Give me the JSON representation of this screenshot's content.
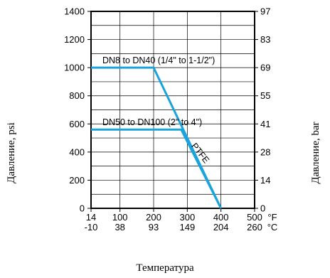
{
  "chart_data": {
    "type": "line",
    "xlabel": "Температура",
    "ylabel_left": "Давление, psi",
    "ylabel_right": "Давление, bar",
    "xlim": [
      14,
      500
    ],
    "ylim": [
      0,
      1400
    ],
    "grid": true,
    "x_ticks_f": [
      14,
      100,
      200,
      300,
      400,
      500
    ],
    "x_ticks_c": [
      -10,
      38,
      93,
      149,
      204,
      260
    ],
    "x_unit_f": "°F",
    "x_unit_c": "°C",
    "y_ticks_psi": [
      0,
      200,
      400,
      600,
      800,
      1000,
      1200,
      1400
    ],
    "y_ticks_bar": [
      0,
      14,
      28,
      41,
      55,
      69,
      83,
      97
    ],
    "y_grid": [
      100,
      300,
      500,
      700,
      900,
      1100,
      1300
    ],
    "x_grid": [
      100,
      200,
      300,
      400
    ],
    "series": [
      {
        "name": "DN8 to DN40 (1/4\" to 1-1/2\")",
        "x": [
          14,
          200,
          400
        ],
        "y": [
          1000,
          1000,
          0
        ]
      },
      {
        "name": "DN50 to DN100 (2\"  to 4\")",
        "x": [
          14,
          282,
          400
        ],
        "y": [
          560,
          560,
          0
        ]
      }
    ],
    "annotations": [
      {
        "text": "PTFE",
        "x": 332,
        "y": 380
      }
    ],
    "line_color": "#1ba3dc"
  }
}
